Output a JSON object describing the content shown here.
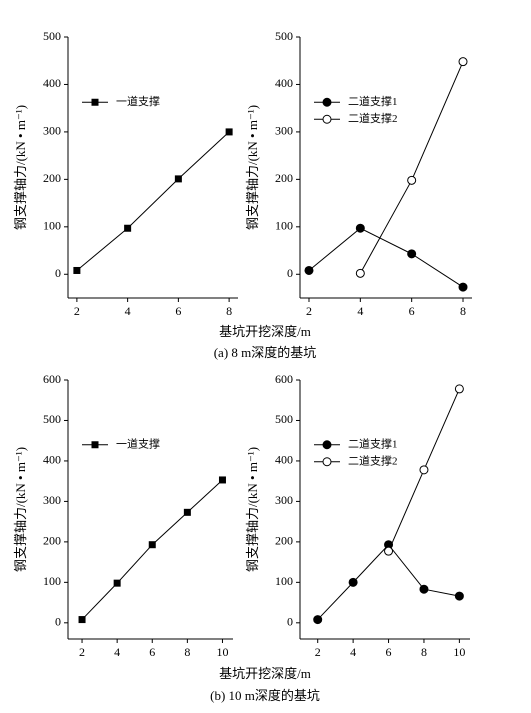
{
  "chart_data": [
    {
      "type": "line",
      "ylabel": "钢支撑轴力/(kN • m⁻¹)",
      "x": [
        2,
        4,
        6,
        8
      ],
      "series": [
        {
          "name": "一道支撑",
          "color": "#000000",
          "marker": "square",
          "values": [
            8,
            97,
            201,
            300
          ]
        }
      ],
      "xlim": [
        1.65,
        8.35
      ],
      "xticks": [
        2,
        4,
        6,
        8
      ],
      "ylim": [
        -50,
        500
      ],
      "yticks": [
        0,
        100,
        200,
        300,
        400,
        500
      ],
      "legend": "upper left"
    },
    {
      "type": "line",
      "ylabel": "钢支撑轴力/(kN • m⁻¹)",
      "x": [
        2,
        4,
        6,
        8
      ],
      "series": [
        {
          "name": "二道支撑1",
          "color": "#000000",
          "marker": "circle-filled",
          "values": [
            8,
            97,
            43,
            -27
          ]
        },
        {
          "name": "二道支撑2",
          "color": "#000000",
          "marker": "circle-open",
          "values": [
            null,
            2,
            198,
            448
          ]
        }
      ],
      "xlim": [
        1.65,
        8.35
      ],
      "xticks": [
        2,
        4,
        6,
        8
      ],
      "ylim": [
        -50,
        500
      ],
      "yticks": [
        0,
        100,
        200,
        300,
        400,
        500
      ],
      "legend": "upper left"
    },
    {
      "type": "line",
      "ylabel": "钢支撑轴力/(kN • m⁻¹)",
      "x": [
        2,
        4,
        6,
        8,
        10
      ],
      "series": [
        {
          "name": "一道支撑",
          "color": "#000000",
          "marker": "square",
          "values": [
            8,
            98,
            193,
            273,
            353
          ]
        }
      ],
      "xlim": [
        1.2,
        10.6
      ],
      "xticks": [
        2,
        4,
        6,
        8,
        10
      ],
      "ylim": [
        -40,
        600
      ],
      "yticks": [
        0,
        100,
        200,
        300,
        400,
        500,
        600
      ],
      "legend": "upper left"
    },
    {
      "type": "line",
      "ylabel": "钢支撑轴力/(kN • m⁻¹)",
      "x": [
        2,
        4,
        6,
        8,
        10
      ],
      "series": [
        {
          "name": "二道支撑1",
          "color": "#000000",
          "marker": "circle-filled",
          "values": [
            8,
            100,
            193,
            83,
            66
          ]
        },
        {
          "name": "二道支撑2",
          "color": "#000000",
          "marker": "circle-open",
          "values": [
            null,
            null,
            177,
            378,
            578
          ]
        }
      ],
      "xlim": [
        1.0,
        10.6
      ],
      "xticks": [
        2,
        4,
        6,
        8,
        10
      ],
      "ylim": [
        -40,
        600
      ],
      "yticks": [
        0,
        100,
        200,
        300,
        400,
        500,
        600
      ],
      "legend": "upper left"
    }
  ],
  "rows": [
    {
      "xlabel": "基坑开挖深度/m",
      "caption": "(a) 8 m深度的基坑"
    },
    {
      "xlabel": "基坑开挖深度/m",
      "caption": "(b) 10 m深度的基坑"
    }
  ]
}
